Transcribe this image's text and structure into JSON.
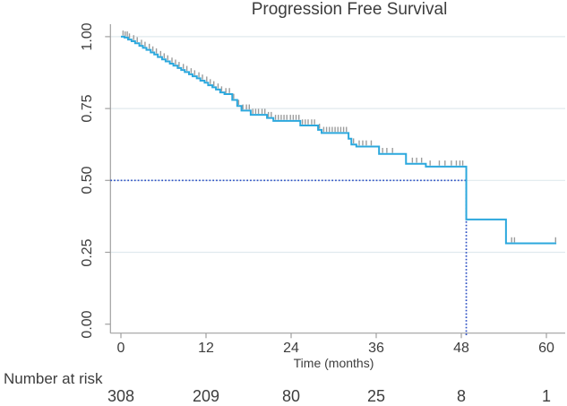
{
  "chart_data": {
    "type": "line",
    "subtype": "kaplan-meier-step",
    "title": "Progression Free Survival",
    "xlabel": "Time (months)",
    "ylabel": "",
    "x_ticks": [
      0,
      12,
      24,
      36,
      48,
      60
    ],
    "x_tick_labels": [
      "0",
      "12",
      "24",
      "36",
      "48",
      "60"
    ],
    "y_ticks": [
      0,
      0.25,
      0.5,
      0.75,
      1.0
    ],
    "y_tick_labels": [
      "0.00",
      "0.25",
      "0.50",
      "0.75",
      "1.00"
    ],
    "xlim": [
      -1.5,
      62.7
    ],
    "ylim": [
      -0.03,
      1.07
    ],
    "grid": true,
    "legend": "none",
    "series": [
      {
        "name": "Progression Free Survival",
        "steps": [
          [
            0,
            1.0
          ],
          [
            0.5,
            0.997
          ],
          [
            1,
            0.99
          ],
          [
            1.5,
            0.984
          ],
          [
            2,
            0.977
          ],
          [
            2.6,
            0.968
          ],
          [
            3.1,
            0.961
          ],
          [
            3.6,
            0.954
          ],
          [
            4.2,
            0.945
          ],
          [
            4.7,
            0.938
          ],
          [
            5.2,
            0.929
          ],
          [
            5.8,
            0.921
          ],
          [
            6.3,
            0.914
          ],
          [
            6.9,
            0.906
          ],
          [
            7.4,
            0.899
          ],
          [
            8,
            0.891
          ],
          [
            8.5,
            0.884
          ],
          [
            9,
            0.877
          ],
          [
            9.6,
            0.869
          ],
          [
            10.1,
            0.862
          ],
          [
            10.7,
            0.855
          ],
          [
            11.2,
            0.847
          ],
          [
            11.8,
            0.84
          ],
          [
            12.3,
            0.831
          ],
          [
            12.9,
            0.824
          ],
          [
            13.4,
            0.816
          ],
          [
            14,
            0.806
          ],
          [
            14.6,
            0.8
          ],
          [
            15.7,
            0.78
          ],
          [
            16.4,
            0.759
          ],
          [
            17,
            0.743
          ],
          [
            18.3,
            0.728
          ],
          [
            20.6,
            0.717
          ],
          [
            21.5,
            0.707
          ],
          [
            25.3,
            0.691
          ],
          [
            27.8,
            0.676
          ],
          [
            28.3,
            0.665
          ],
          [
            32.1,
            0.645
          ],
          [
            32.5,
            0.625
          ],
          [
            33.2,
            0.618
          ],
          [
            36.4,
            0.592
          ],
          [
            40.2,
            0.558
          ],
          [
            43,
            0.548
          ],
          [
            48.7,
            0.364
          ],
          [
            54.3,
            0.281
          ]
        ],
        "end_time": 61.4,
        "censor_times": [
          0.3,
          0.6,
          0.9,
          1.2,
          1.8,
          2.3,
          2.9,
          3.4,
          4.0,
          4.5,
          5.0,
          5.6,
          6.1,
          6.6,
          7.2,
          7.7,
          8.2,
          8.8,
          9.3,
          9.9,
          10.4,
          11.0,
          11.5,
          12.1,
          12.6,
          13.1,
          13.7,
          14.2,
          14.8,
          15.3,
          15.9,
          16.6,
          17.2,
          17.7,
          18.1,
          18.6,
          19.0,
          19.4,
          19.9,
          20.3,
          20.8,
          21.2,
          21.8,
          22.2,
          22.6,
          23.0,
          23.4,
          23.9,
          24.3,
          24.7,
          25.1,
          25.6,
          26.0,
          26.4,
          26.9,
          27.3,
          28.0,
          28.6,
          29.0,
          29.4,
          29.8,
          30.2,
          30.6,
          31.0,
          31.4,
          31.8,
          32.8,
          33.6,
          34.1,
          34.6,
          35.3,
          36.9,
          37.5,
          38.3,
          41.1,
          41.7,
          42.4,
          43.6,
          44.9,
          45.7,
          46.6,
          47.3,
          47.8,
          48.2,
          55.1,
          55.5,
          61.3
        ]
      }
    ],
    "median_reference": {
      "time": 48.7,
      "survival": 0.5
    },
    "number_at_risk": {
      "label": "Number at risk",
      "times": [
        0,
        12,
        24,
        36,
        48,
        60
      ],
      "values": [
        "308",
        "209",
        "80",
        "25",
        "8",
        "1"
      ]
    },
    "colors": {
      "curve": "#2ca8dd",
      "censor_tick": "#9c9c9c",
      "median_line": "#2d50c4",
      "grid": "#e0eaee",
      "axis": "#a0a0a0",
      "text": "#3d3d3d"
    }
  }
}
